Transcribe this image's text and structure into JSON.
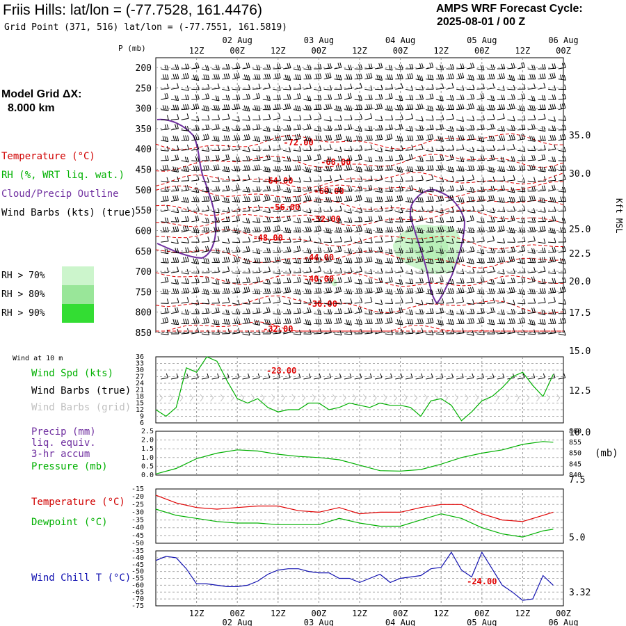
{
  "header": {
    "title": "Friis Hills:  lat/lon = (-77.7528, 161.4476)",
    "grid_point": "Grid Point (371, 516) lat/lon = (-77.7551, 161.5819)",
    "cycle_line1": "AMPS WRF Forecast Cycle:",
    "cycle_line2": "2025-08-01 / 00  Z",
    "model_grid_line1": "Model Grid ΔX:",
    "model_grid_line2": "8.000 km"
  },
  "legend": {
    "temperature": "Temperature (°C)",
    "rh": "RH (%, WRT liq. wat.)",
    "cloud": "Cloud/Precip Outline",
    "wind": "Wind Barbs (kts) (true)",
    "rh70": "RH > 70%",
    "rh80": "RH > 80%",
    "rh90": "RH > 90%",
    "colors": {
      "rh70": "#ccf5cc",
      "rh80": "#99e699",
      "rh90": "#33dd33",
      "temp": "#e00000",
      "cloud": "#7030a0"
    }
  },
  "time_axis": {
    "ticks": [
      "12Z",
      "00Z",
      "12Z",
      "00Z",
      "12Z",
      "00Z",
      "12Z",
      "00Z",
      "12Z",
      "00Z"
    ],
    "dates": [
      "02 Aug",
      "03 Aug",
      "04 Aug",
      "05 Aug",
      "06 Aug"
    ]
  },
  "panels": {
    "p_label": "P (mb)",
    "kft_label": "Kft MSL",
    "wind10m_label": "Wind at 10 m",
    "wind_spd": "Wind Spd (kts)",
    "wind_barbs_true": "Wind Barbs (true)",
    "wind_barbs_grid": "Wind Barbs (grid)",
    "precip": "Precip (mm)",
    "precip2": "liq. equiv.",
    "precip3": "3-hr accum",
    "pressure": "Pressure (mb)",
    "mb_unit": "(mb)",
    "temperature": "Temperature (°C)",
    "dewpoint": "Dewpoint (°C)",
    "windchill": "Wind Chill T (°C)"
  },
  "chart_data": [
    {
      "type": "line",
      "name": "upper-air cross-section",
      "pressure_ticks": [
        200,
        250,
        300,
        350,
        400,
        450,
        500,
        550,
        600,
        650,
        700,
        750,
        800,
        850
      ],
      "kft_ticks": [
        [
          "35.0",
          195
        ],
        [
          "30.0",
          250
        ],
        [
          "25.0",
          330
        ],
        [
          "22.5",
          365
        ],
        [
          "20.0",
          405
        ],
        [
          "17.5",
          450
        ],
        [
          "15.0",
          505
        ],
        [
          "12.5",
          562
        ],
        [
          "10.0",
          622
        ],
        [
          "7.5",
          690
        ],
        [
          "5.0",
          773
        ],
        [
          "3.32",
          852
        ]
      ],
      "isotherm_labels": [
        "-72.00",
        "-68.00",
        "-64.00",
        "-60.00",
        "-56.00",
        "-52.00",
        "-48.00",
        "-44.00",
        "-40.00",
        "-36.00",
        "-32.00",
        "-28.00",
        "-24.00"
      ],
      "isotherm_positions": [
        [
          -72,
          42,
          205
        ],
        [
          -68,
          53,
          233
        ],
        [
          -64,
          36,
          260
        ],
        [
          -60,
          51,
          275
        ],
        [
          -56,
          38,
          298
        ],
        [
          -52,
          50,
          315
        ],
        [
          -48,
          33,
          342
        ],
        [
          -44,
          48,
          370
        ],
        [
          -40,
          48,
          401
        ],
        [
          -36,
          49,
          437
        ],
        [
          -32,
          36,
          473
        ],
        [
          -28,
          37,
          533
        ],
        [
          -24,
          96,
          836
        ]
      ],
      "ylim": [
        200,
        850
      ]
    },
    {
      "type": "line",
      "name": "Wind Spd (kts)",
      "y_ticks": [
        6,
        9,
        12,
        15,
        18,
        21,
        24,
        27,
        30,
        33,
        36
      ],
      "x_hours": [
        0,
        3,
        6,
        9,
        12,
        15,
        18,
        21,
        24,
        27,
        30,
        33,
        36,
        39,
        42,
        45,
        48,
        51,
        54,
        57,
        60,
        63,
        66,
        69,
        72,
        75,
        78,
        81,
        84,
        87,
        90,
        93,
        96,
        99,
        102,
        105,
        108,
        111,
        114,
        117
      ],
      "values": [
        12,
        9,
        13,
        31,
        29,
        36,
        34,
        25,
        17,
        15,
        17,
        13,
        11,
        12,
        12,
        15,
        15,
        12,
        13,
        15,
        14,
        13,
        15,
        14,
        14,
        13,
        9,
        16,
        17,
        14,
        7,
        11,
        16,
        18,
        22,
        27,
        29,
        23,
        18,
        28
      ],
      "ylim": [
        6,
        36
      ]
    },
    {
      "type": "line",
      "name": "Precip / Pressure",
      "precip_ticks": [
        "0.0",
        "0.5",
        "1.0",
        "1.5",
        "2.0",
        "2.5"
      ],
      "pressure_ticks": [
        "840",
        "845",
        "850",
        "855",
        "860"
      ],
      "x_hours": [
        0,
        6,
        12,
        18,
        24,
        30,
        36,
        42,
        48,
        54,
        60,
        66,
        72,
        78,
        84,
        90,
        96,
        102,
        108,
        114,
        117
      ],
      "values": [
        840.5,
        843,
        847.5,
        850,
        851.5,
        851,
        849.5,
        848.5,
        848,
        847,
        844.5,
        842,
        841.8,
        842.5,
        845,
        848,
        850,
        851.5,
        854,
        855.3,
        855
      ],
      "ylim": [
        840,
        860
      ]
    },
    {
      "type": "line",
      "name": "Temperature / Dewpoint",
      "y_ticks": [
        -15,
        -20,
        -25,
        -30,
        -35,
        -40,
        -45,
        -50
      ],
      "x_hours": [
        0,
        6,
        12,
        18,
        24,
        30,
        36,
        42,
        48,
        54,
        60,
        66,
        72,
        78,
        84,
        90,
        96,
        102,
        108,
        114,
        117
      ],
      "temperature": [
        -19,
        -24,
        -27,
        -28,
        -27,
        -26,
        -26,
        -29,
        -30,
        -27,
        -31,
        -30,
        -30,
        -27,
        -25,
        -25,
        -31,
        -35,
        -36,
        -32,
        -30
      ],
      "dewpoint": [
        -28,
        -32,
        -34,
        -36,
        -37,
        -37,
        -38,
        -38,
        -38,
        -34,
        -37,
        -39,
        -39,
        -35,
        -31,
        -34,
        -40,
        -44,
        -46,
        -42,
        -41
      ],
      "ylim": [
        -50,
        -15
      ]
    },
    {
      "type": "line",
      "name": "Wind Chill T (°C)",
      "y_ticks": [
        -35,
        -40,
        -45,
        -50,
        -55,
        -60,
        -65,
        -70,
        -75
      ],
      "x_hours": [
        0,
        3,
        6,
        9,
        12,
        15,
        18,
        21,
        24,
        27,
        30,
        33,
        36,
        39,
        42,
        45,
        48,
        51,
        54,
        57,
        60,
        63,
        66,
        69,
        72,
        75,
        78,
        81,
        84,
        87,
        90,
        93,
        96,
        99,
        102,
        105,
        108,
        111,
        114,
        117
      ],
      "values": [
        -42,
        -39,
        -40,
        -48,
        -59,
        -59,
        -60,
        -61,
        -61,
        -60,
        -57,
        -52,
        -49,
        -48,
        -48,
        -50,
        -51,
        -51,
        -55,
        -55,
        -58,
        -55,
        -52,
        -58,
        -55,
        -54,
        -53,
        -48,
        -47,
        -36,
        -49,
        -54,
        -36,
        -48,
        -60,
        -65,
        -71,
        -70,
        -53,
        -60
      ],
      "ylim": [
        -75,
        -35
      ]
    }
  ]
}
